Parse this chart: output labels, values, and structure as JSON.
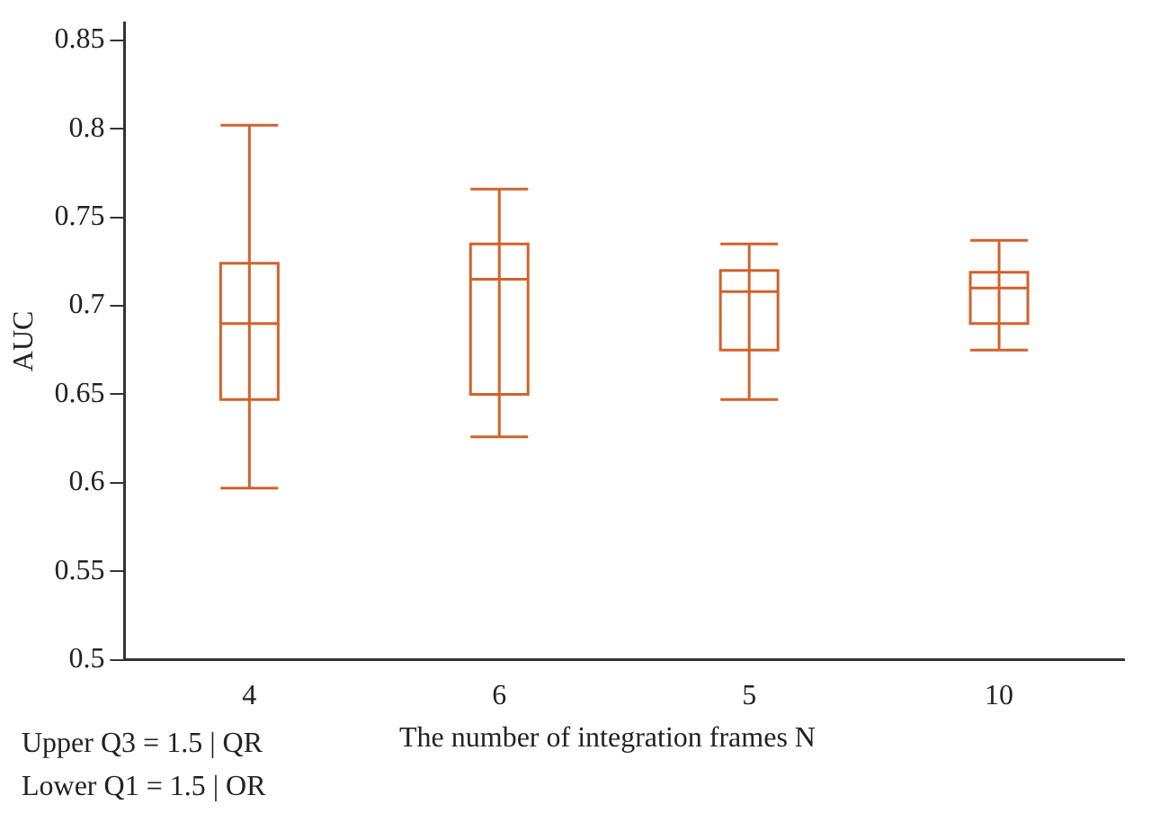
{
  "chart_data": {
    "type": "box",
    "xlabel": "The number of integration frames N",
    "ylabel": "AUC",
    "categories": [
      "4",
      "6",
      "5",
      "10"
    ],
    "series": [
      {
        "color": "#d2622b",
        "boxes": [
          {
            "low": 0.597,
            "q1": 0.647,
            "median": 0.69,
            "q3": 0.724,
            "high": 0.802
          },
          {
            "low": 0.626,
            "q1": 0.65,
            "median": 0.715,
            "q3": 0.735,
            "high": 0.766
          },
          {
            "low": 0.647,
            "q1": 0.675,
            "median": 0.708,
            "q3": 0.72,
            "high": 0.735
          },
          {
            "low": 0.675,
            "q1": 0.69,
            "median": 0.71,
            "q3": 0.719,
            "high": 0.737
          }
        ]
      }
    ],
    "ylim": [
      0.5,
      0.86
    ],
    "yticks": [
      0.5,
      0.55,
      0.6,
      0.65,
      0.7,
      0.75,
      0.8,
      0.85
    ],
    "grid": false,
    "legend": false,
    "annotations": [
      "Upper Q3 = 1.5 | QR",
      "Lower Q1 = 1.5 | OR"
    ]
  }
}
